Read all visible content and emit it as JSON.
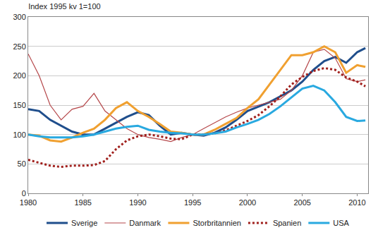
{
  "chart_data": {
    "type": "line",
    "title": "Index 1995 kv 1=100",
    "x": [
      1980,
      1981,
      1982,
      1983,
      1984,
      1985,
      1986,
      1987,
      1988,
      1989,
      1990,
      1991,
      1992,
      1993,
      1994,
      1995,
      1996,
      1997,
      1998,
      1999,
      2000,
      2001,
      2002,
      2003,
      2004,
      2005,
      2006,
      2007,
      2008,
      2009,
      2010,
      2010.75
    ],
    "series": [
      {
        "name": "Sverige",
        "color": "#1f4e8c",
        "line_style": "solid",
        "values": [
          143,
          140,
          125,
          115,
          105,
          100,
          100,
          110,
          120,
          130,
          138,
          133,
          115,
          100,
          103,
          100,
          98,
          103,
          112,
          125,
          140,
          148,
          155,
          165,
          175,
          190,
          210,
          225,
          232,
          222,
          240,
          247
        ]
      },
      {
        "name": "Danmark",
        "color": "#b5474a",
        "line_style": "solid",
        "values": [
          237,
          200,
          150,
          125,
          143,
          148,
          170,
          140,
          125,
          110,
          100,
          95,
          92,
          88,
          95,
          100,
          110,
          120,
          130,
          138,
          145,
          150,
          155,
          160,
          175,
          200,
          240,
          245,
          230,
          195,
          190,
          193
        ]
      },
      {
        "name": "Storbritannien",
        "color": "#f0a030",
        "line_style": "solid",
        "values": [
          100,
          98,
          90,
          88,
          95,
          103,
          110,
          125,
          145,
          155,
          140,
          130,
          118,
          105,
          103,
          100,
          100,
          108,
          118,
          128,
          145,
          160,
          185,
          210,
          235,
          235,
          240,
          250,
          240,
          205,
          218,
          215
        ]
      },
      {
        "name": "Spanien",
        "color": "#a0201d",
        "line_style": "dotted",
        "values": [
          57,
          52,
          47,
          45,
          47,
          47,
          48,
          55,
          75,
          90,
          97,
          100,
          97,
          93,
          92,
          100,
          100,
          102,
          107,
          115,
          123,
          133,
          148,
          165,
          185,
          198,
          208,
          213,
          210,
          197,
          190,
          182
        ]
      },
      {
        "name": "USA",
        "color": "#29a9e0",
        "line_style": "solid",
        "values": [
          100,
          97,
          95,
          95,
          95,
          97,
          100,
          105,
          110,
          113,
          115,
          108,
          105,
          103,
          102,
          100,
          100,
          102,
          105,
          112,
          118,
          125,
          135,
          148,
          163,
          178,
          183,
          175,
          155,
          130,
          123,
          124
        ]
      }
    ],
    "xlim": [
      1980,
      2011
    ],
    "xticks": [
      1980,
      1985,
      1990,
      1995,
      2000,
      2005,
      2010
    ],
    "ylim": [
      0,
      300
    ],
    "yticks": [
      0,
      50,
      100,
      150,
      200,
      250,
      300
    ],
    "grid": true,
    "legend": "bottom"
  }
}
